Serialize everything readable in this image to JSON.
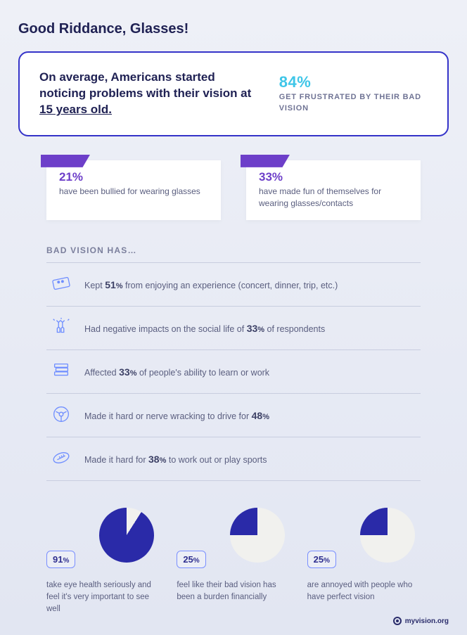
{
  "colors": {
    "primary": "#2a2aa8",
    "pie_bg": "#f1f1ee",
    "accent_purple": "#6d3fc9",
    "accent_cyan": "#3fc6e8",
    "hero_border": "#3533c9"
  },
  "title": "Good Riddance, Glasses!",
  "hero": {
    "text_pre": "On average, Americans started noticing problems with their vision at ",
    "age": "15 years old.",
    "pct": "84%",
    "sub": "GET FRUSTRATED BY THEIR BAD VISION"
  },
  "stats": [
    {
      "pct": "21%",
      "text": "have been bullied for wearing glasses"
    },
    {
      "pct": "33%",
      "text": "have made fun of themselves for wearing glasses/contacts"
    }
  ],
  "list_head": "BAD VISION HAS…",
  "list": [
    {
      "icon": "ticket",
      "pre": "Kept ",
      "pct": "51",
      "post": " from enjoying an experience (concert, dinner, trip, etc.)"
    },
    {
      "icon": "cheers",
      "pre": "Had negative impacts on the social life of ",
      "pct": "33",
      "post": " of respondents"
    },
    {
      "icon": "books",
      "pre": "Affected ",
      "pct": "33",
      "post": " of people's ability to learn or work"
    },
    {
      "icon": "wheel",
      "pre": "Made it hard or nerve wracking to drive for ",
      "pct": "48",
      "post": ""
    },
    {
      "icon": "football",
      "pre": "Made it hard for ",
      "pct": "38",
      "post": " to work out or play sports"
    }
  ],
  "pies": [
    {
      "pct": 91,
      "label": "91",
      "text": "take eye health seriously and feel it's very important to see well"
    },
    {
      "pct": 25,
      "label": "25",
      "text": "feel like their bad vision has been a burden financially"
    },
    {
      "pct": 25,
      "label": "25",
      "text": "are annoyed with people who have perfect vision"
    }
  ],
  "footer": "myvision.org"
}
